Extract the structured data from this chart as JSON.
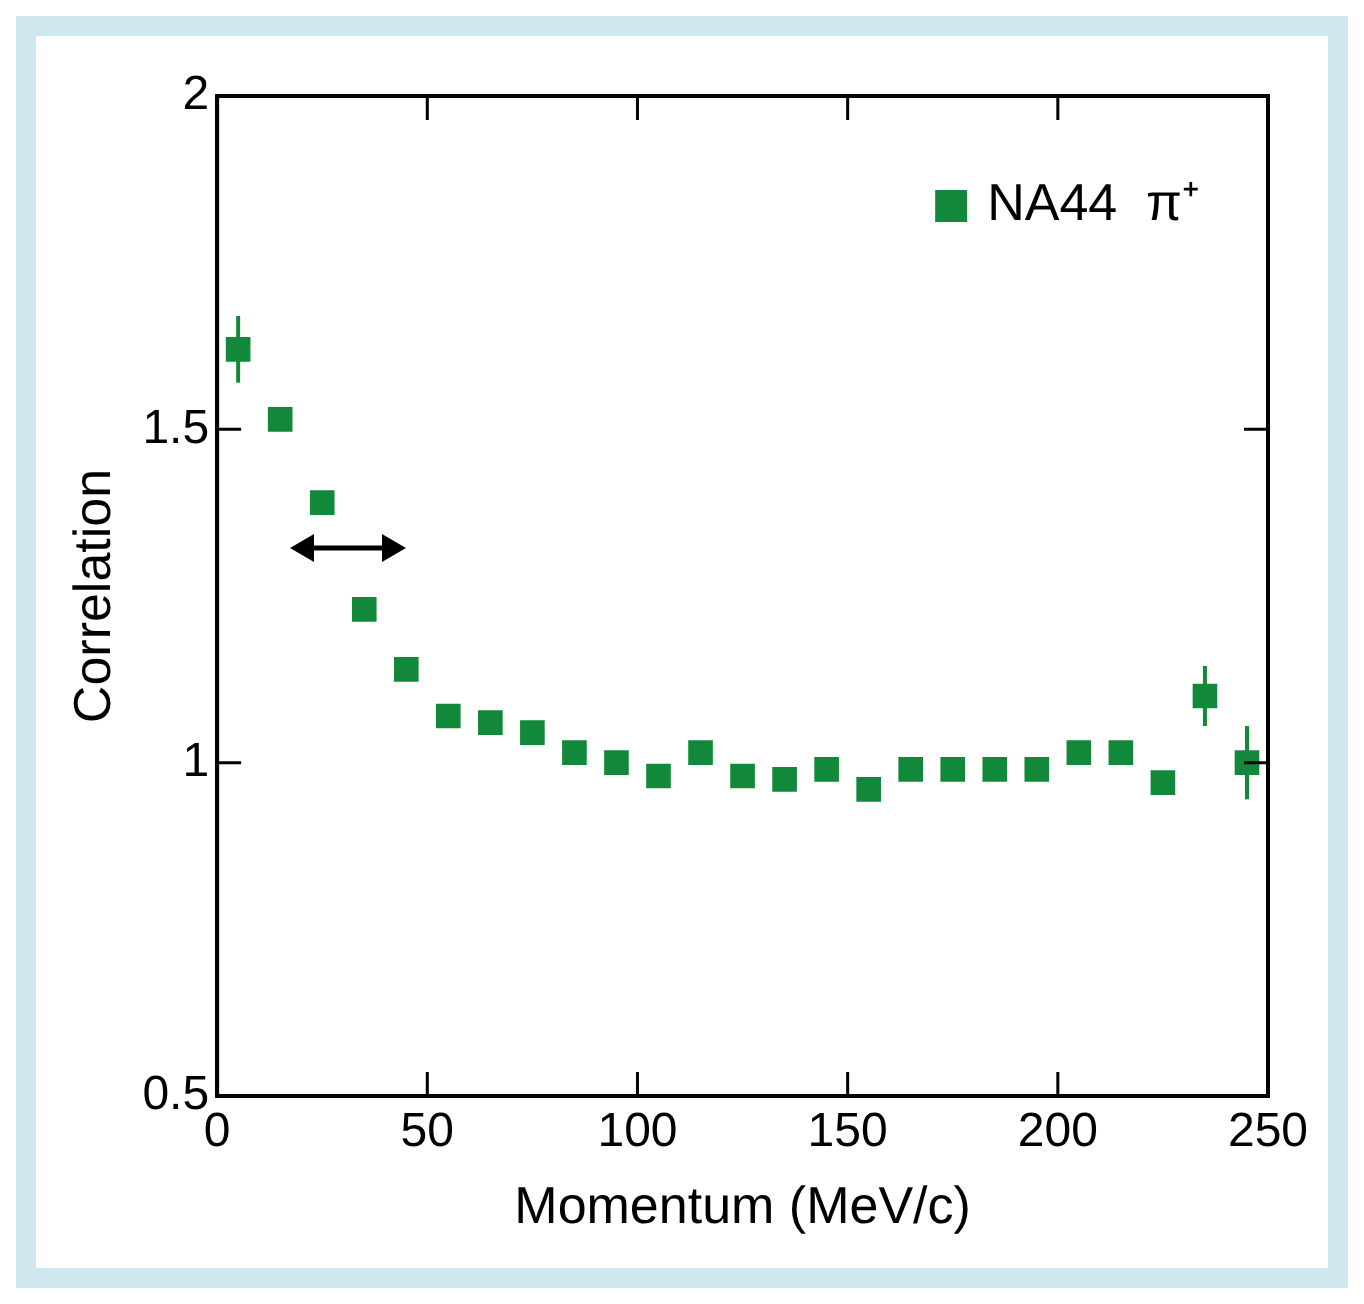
{
  "chart_data": {
    "type": "scatter",
    "xlabel": "Momentum (MeV/c)",
    "ylabel": "Correlation",
    "x": [
      5,
      15,
      25,
      35,
      45,
      55,
      65,
      75,
      85,
      95,
      105,
      115,
      125,
      135,
      145,
      155,
      165,
      175,
      185,
      195,
      205,
      215,
      225,
      235,
      245
    ],
    "series": [
      {
        "name": "NA44  π⁺",
        "color": "#12893a",
        "values": [
          1.62,
          1.515,
          1.39,
          1.23,
          1.14,
          1.07,
          1.06,
          1.045,
          1.015,
          1.0,
          0.98,
          1.015,
          0.98,
          0.975,
          0.99,
          0.96,
          0.99,
          0.99,
          0.99,
          0.99,
          1.015,
          1.015,
          0.97,
          1.1,
          1.0
        ],
        "errors": [
          0.05,
          null,
          null,
          null,
          null,
          null,
          null,
          null,
          null,
          null,
          null,
          null,
          null,
          null,
          null,
          null,
          null,
          null,
          null,
          null,
          null,
          null,
          null,
          0.045,
          0.055
        ]
      }
    ],
    "xlim": [
      0,
      250
    ],
    "xticks": [
      0,
      50,
      100,
      150,
      200,
      250
    ],
    "ylim": [
      0.5,
      2
    ],
    "yticks": [
      0.5,
      1,
      1.5,
      2
    ],
    "marker": "square",
    "legend": "top right",
    "grid": false
  }
}
